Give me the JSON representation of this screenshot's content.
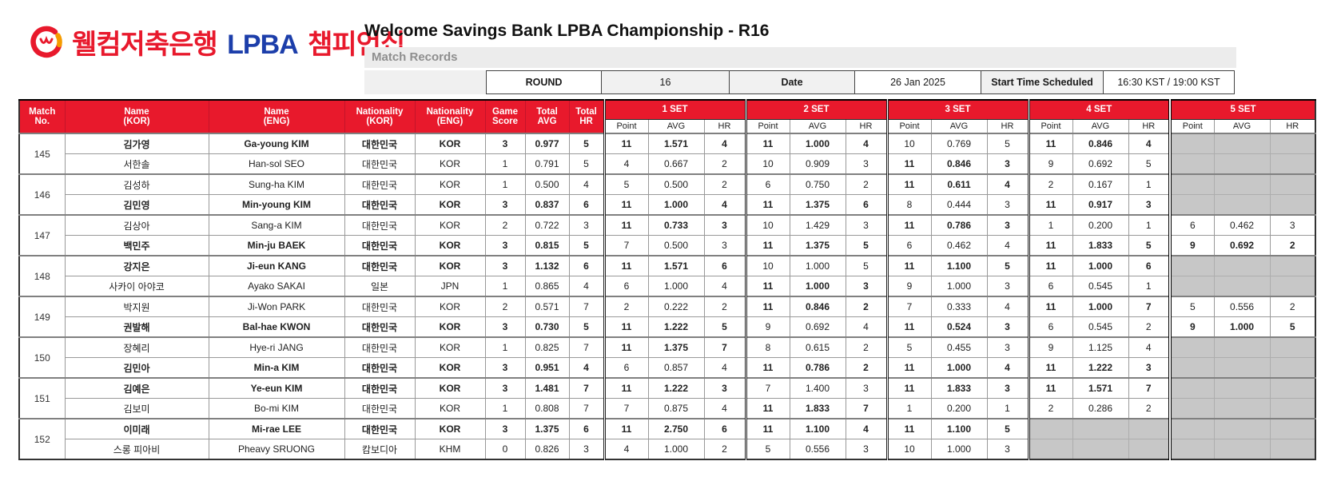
{
  "colors": {
    "accent_red": "#e8192c",
    "lpba_blue": "#1c3eaa",
    "logo_orange": "#f59b00",
    "disabled_cell": "#c7c7c7"
  },
  "header": {
    "logo_kor_bank": "웰컴저축은행",
    "logo_lpba": "LPBA",
    "logo_championship": "챔피언십",
    "title": "Welcome Savings Bank LPBA Championship - R16",
    "subtitle": "Match Records"
  },
  "info_bar": {
    "round_label": "ROUND",
    "round_value": "16",
    "date_label": "Date",
    "date_value": "26 Jan 2025",
    "start_label": "Start Time Scheduled",
    "start_value": "16:30 KST / 19:00 KST"
  },
  "table": {
    "columns": [
      [
        "Match",
        "No."
      ],
      [
        "Name",
        "(KOR)"
      ],
      [
        "Name",
        "(ENG)"
      ],
      [
        "Nationality",
        "(KOR)"
      ],
      [
        "Nationality",
        "(ENG)"
      ],
      [
        "Game",
        "Score"
      ],
      [
        "Total",
        "AVG"
      ],
      [
        "Total",
        "HR"
      ]
    ],
    "set_labels": [
      "1 SET",
      "2 SET",
      "3 SET",
      "4 SET",
      "5 SET"
    ],
    "sub_headers": [
      "Point",
      "AVG",
      "HR"
    ],
    "matches": [
      {
        "no": "145",
        "players": [
          {
            "name_kor": "김가영",
            "name_eng": "Ga-young KIM",
            "nat_kor": "대한민국",
            "nat_eng": "KOR",
            "game_score": "3",
            "total_avg": "0.977",
            "total_hr": "5",
            "winner": true,
            "sets": [
              {
                "point": "11",
                "avg": "1.571",
                "hr": "4",
                "won": true
              },
              {
                "point": "11",
                "avg": "1.000",
                "hr": "4",
                "won": true
              },
              {
                "point": "10",
                "avg": "0.769",
                "hr": "5",
                "won": false
              },
              {
                "point": "11",
                "avg": "0.846",
                "hr": "4",
                "won": true
              },
              null
            ]
          },
          {
            "name_kor": "서한솔",
            "name_eng": "Han-sol SEO",
            "nat_kor": "대한민국",
            "nat_eng": "KOR",
            "game_score": "1",
            "total_avg": "0.791",
            "total_hr": "5",
            "winner": false,
            "sets": [
              {
                "point": "4",
                "avg": "0.667",
                "hr": "2",
                "won": false
              },
              {
                "point": "10",
                "avg": "0.909",
                "hr": "3",
                "won": false
              },
              {
                "point": "11",
                "avg": "0.846",
                "hr": "3",
                "won": true
              },
              {
                "point": "9",
                "avg": "0.692",
                "hr": "5",
                "won": false
              },
              null
            ]
          }
        ]
      },
      {
        "no": "146",
        "players": [
          {
            "name_kor": "김성하",
            "name_eng": "Sung-ha KIM",
            "nat_kor": "대한민국",
            "nat_eng": "KOR",
            "game_score": "1",
            "total_avg": "0.500",
            "total_hr": "4",
            "winner": false,
            "sets": [
              {
                "point": "5",
                "avg": "0.500",
                "hr": "2",
                "won": false
              },
              {
                "point": "6",
                "avg": "0.750",
                "hr": "2",
                "won": false
              },
              {
                "point": "11",
                "avg": "0.611",
                "hr": "4",
                "won": true
              },
              {
                "point": "2",
                "avg": "0.167",
                "hr": "1",
                "won": false
              },
              null
            ]
          },
          {
            "name_kor": "김민영",
            "name_eng": "Min-young KIM",
            "nat_kor": "대한민국",
            "nat_eng": "KOR",
            "game_score": "3",
            "total_avg": "0.837",
            "total_hr": "6",
            "winner": true,
            "sets": [
              {
                "point": "11",
                "avg": "1.000",
                "hr": "4",
                "won": true
              },
              {
                "point": "11",
                "avg": "1.375",
                "hr": "6",
                "won": true
              },
              {
                "point": "8",
                "avg": "0.444",
                "hr": "3",
                "won": false
              },
              {
                "point": "11",
                "avg": "0.917",
                "hr": "3",
                "won": true
              },
              null
            ]
          }
        ]
      },
      {
        "no": "147",
        "players": [
          {
            "name_kor": "김상아",
            "name_eng": "Sang-a KIM",
            "nat_kor": "대한민국",
            "nat_eng": "KOR",
            "game_score": "2",
            "total_avg": "0.722",
            "total_hr": "3",
            "winner": false,
            "sets": [
              {
                "point": "11",
                "avg": "0.733",
                "hr": "3",
                "won": true
              },
              {
                "point": "10",
                "avg": "1.429",
                "hr": "3",
                "won": false
              },
              {
                "point": "11",
                "avg": "0.786",
                "hr": "3",
                "won": true
              },
              {
                "point": "1",
                "avg": "0.200",
                "hr": "1",
                "won": false
              },
              {
                "point": "6",
                "avg": "0.462",
                "hr": "3",
                "won": false
              }
            ]
          },
          {
            "name_kor": "백민주",
            "name_eng": "Min-ju BAEK",
            "nat_kor": "대한민국",
            "nat_eng": "KOR",
            "game_score": "3",
            "total_avg": "0.815",
            "total_hr": "5",
            "winner": true,
            "sets": [
              {
                "point": "7",
                "avg": "0.500",
                "hr": "3",
                "won": false
              },
              {
                "point": "11",
                "avg": "1.375",
                "hr": "5",
                "won": true
              },
              {
                "point": "6",
                "avg": "0.462",
                "hr": "4",
                "won": false
              },
              {
                "point": "11",
                "avg": "1.833",
                "hr": "5",
                "won": true
              },
              {
                "point": "9",
                "avg": "0.692",
                "hr": "2",
                "won": true
              }
            ]
          }
        ]
      },
      {
        "no": "148",
        "players": [
          {
            "name_kor": "강지은",
            "name_eng": "Ji-eun KANG",
            "nat_kor": "대한민국",
            "nat_eng": "KOR",
            "game_score": "3",
            "total_avg": "1.132",
            "total_hr": "6",
            "winner": true,
            "sets": [
              {
                "point": "11",
                "avg": "1.571",
                "hr": "6",
                "won": true
              },
              {
                "point": "10",
                "avg": "1.000",
                "hr": "5",
                "won": false
              },
              {
                "point": "11",
                "avg": "1.100",
                "hr": "5",
                "won": true
              },
              {
                "point": "11",
                "avg": "1.000",
                "hr": "6",
                "won": true
              },
              null
            ]
          },
          {
            "name_kor": "사카이 아야코",
            "name_eng": "Ayako SAKAI",
            "nat_kor": "일본",
            "nat_eng": "JPN",
            "game_score": "1",
            "total_avg": "0.865",
            "total_hr": "4",
            "winner": false,
            "sets": [
              {
                "point": "6",
                "avg": "1.000",
                "hr": "4",
                "won": false
              },
              {
                "point": "11",
                "avg": "1.000",
                "hr": "3",
                "won": true
              },
              {
                "point": "9",
                "avg": "1.000",
                "hr": "3",
                "won": false
              },
              {
                "point": "6",
                "avg": "0.545",
                "hr": "1",
                "won": false
              },
              null
            ]
          }
        ]
      },
      {
        "no": "149",
        "players": [
          {
            "name_kor": "박지원",
            "name_eng": "Ji-Won PARK",
            "nat_kor": "대한민국",
            "nat_eng": "KOR",
            "game_score": "2",
            "total_avg": "0.571",
            "total_hr": "7",
            "winner": false,
            "sets": [
              {
                "point": "2",
                "avg": "0.222",
                "hr": "2",
                "won": false
              },
              {
                "point": "11",
                "avg": "0.846",
                "hr": "2",
                "won": true
              },
              {
                "point": "7",
                "avg": "0.333",
                "hr": "4",
                "won": false
              },
              {
                "point": "11",
                "avg": "1.000",
                "hr": "7",
                "won": true
              },
              {
                "point": "5",
                "avg": "0.556",
                "hr": "2",
                "won": false
              }
            ]
          },
          {
            "name_kor": "권발해",
            "name_eng": "Bal-hae KWON",
            "nat_kor": "대한민국",
            "nat_eng": "KOR",
            "game_score": "3",
            "total_avg": "0.730",
            "total_hr": "5",
            "winner": true,
            "sets": [
              {
                "point": "11",
                "avg": "1.222",
                "hr": "5",
                "won": true
              },
              {
                "point": "9",
                "avg": "0.692",
                "hr": "4",
                "won": false
              },
              {
                "point": "11",
                "avg": "0.524",
                "hr": "3",
                "won": true
              },
              {
                "point": "6",
                "avg": "0.545",
                "hr": "2",
                "won": false
              },
              {
                "point": "9",
                "avg": "1.000",
                "hr": "5",
                "won": true
              }
            ]
          }
        ]
      },
      {
        "no": "150",
        "players": [
          {
            "name_kor": "장혜리",
            "name_eng": "Hye-ri JANG",
            "nat_kor": "대한민국",
            "nat_eng": "KOR",
            "game_score": "1",
            "total_avg": "0.825",
            "total_hr": "7",
            "winner": false,
            "sets": [
              {
                "point": "11",
                "avg": "1.375",
                "hr": "7",
                "won": true
              },
              {
                "point": "8",
                "avg": "0.615",
                "hr": "2",
                "won": false
              },
              {
                "point": "5",
                "avg": "0.455",
                "hr": "3",
                "won": false
              },
              {
                "point": "9",
                "avg": "1.125",
                "hr": "4",
                "won": false
              },
              null
            ]
          },
          {
            "name_kor": "김민아",
            "name_eng": "Min-a KIM",
            "nat_kor": "대한민국",
            "nat_eng": "KOR",
            "game_score": "3",
            "total_avg": "0.951",
            "total_hr": "4",
            "winner": true,
            "sets": [
              {
                "point": "6",
                "avg": "0.857",
                "hr": "4",
                "won": false
              },
              {
                "point": "11",
                "avg": "0.786",
                "hr": "2",
                "won": true
              },
              {
                "point": "11",
                "avg": "1.000",
                "hr": "4",
                "won": true
              },
              {
                "point": "11",
                "avg": "1.222",
                "hr": "3",
                "won": true
              },
              null
            ]
          }
        ]
      },
      {
        "no": "151",
        "players": [
          {
            "name_kor": "김예은",
            "name_eng": "Ye-eun KIM",
            "nat_kor": "대한민국",
            "nat_eng": "KOR",
            "game_score": "3",
            "total_avg": "1.481",
            "total_hr": "7",
            "winner": true,
            "sets": [
              {
                "point": "11",
                "avg": "1.222",
                "hr": "3",
                "won": true
              },
              {
                "point": "7",
                "avg": "1.400",
                "hr": "3",
                "won": false
              },
              {
                "point": "11",
                "avg": "1.833",
                "hr": "3",
                "won": true
              },
              {
                "point": "11",
                "avg": "1.571",
                "hr": "7",
                "won": true
              },
              null
            ]
          },
          {
            "name_kor": "김보미",
            "name_eng": "Bo-mi KIM",
            "nat_kor": "대한민국",
            "nat_eng": "KOR",
            "game_score": "1",
            "total_avg": "0.808",
            "total_hr": "7",
            "winner": false,
            "sets": [
              {
                "point": "7",
                "avg": "0.875",
                "hr": "4",
                "won": false
              },
              {
                "point": "11",
                "avg": "1.833",
                "hr": "7",
                "won": true
              },
              {
                "point": "1",
                "avg": "0.200",
                "hr": "1",
                "won": false
              },
              {
                "point": "2",
                "avg": "0.286",
                "hr": "2",
                "won": false
              },
              null
            ]
          }
        ]
      },
      {
        "no": "152",
        "players": [
          {
            "name_kor": "이미래",
            "name_eng": "Mi-rae LEE",
            "nat_kor": "대한민국",
            "nat_eng": "KOR",
            "game_score": "3",
            "total_avg": "1.375",
            "total_hr": "6",
            "winner": true,
            "sets": [
              {
                "point": "11",
                "avg": "2.750",
                "hr": "6",
                "won": true
              },
              {
                "point": "11",
                "avg": "1.100",
                "hr": "4",
                "won": true
              },
              {
                "point": "11",
                "avg": "1.100",
                "hr": "5",
                "won": true
              },
              null,
              null
            ]
          },
          {
            "name_kor": "스롱 피아비",
            "name_eng": "Pheavy SRUONG",
            "nat_kor": "캄보디아",
            "nat_eng": "KHM",
            "game_score": "0",
            "total_avg": "0.826",
            "total_hr": "3",
            "winner": false,
            "sets": [
              {
                "point": "4",
                "avg": "1.000",
                "hr": "2",
                "won": false
              },
              {
                "point": "5",
                "avg": "0.556",
                "hr": "3",
                "won": false
              },
              {
                "point": "10",
                "avg": "1.000",
                "hr": "3",
                "won": false
              },
              null,
              null
            ]
          }
        ]
      }
    ]
  }
}
